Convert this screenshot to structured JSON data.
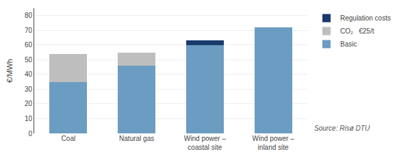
{
  "chart_data": {
    "type": "bar",
    "stacked": true,
    "categories": [
      "Coal",
      "Natural gas",
      "Wind power –\ncoastal site",
      "Wind power –\ninland site"
    ],
    "series": [
      {
        "name": "Basic",
        "color": "#6B9DC2",
        "values": [
          35,
          46,
          60,
          72
        ]
      },
      {
        "name": "CO₂   €25/t",
        "color": "#BEBEBE",
        "values": [
          19,
          9,
          0,
          0
        ]
      },
      {
        "name": "Regulation costs",
        "color": "#1A3A6B",
        "values": [
          0,
          0,
          3,
          0
        ]
      }
    ],
    "ylabel": "€/MWh",
    "ylim": [
      0,
      85
    ],
    "yticks": [
      0,
      10,
      20,
      30,
      40,
      50,
      60,
      70,
      80
    ],
    "grid": true,
    "legend": "upper right",
    "annotations": [
      "Source: Risø DTU"
    ]
  }
}
